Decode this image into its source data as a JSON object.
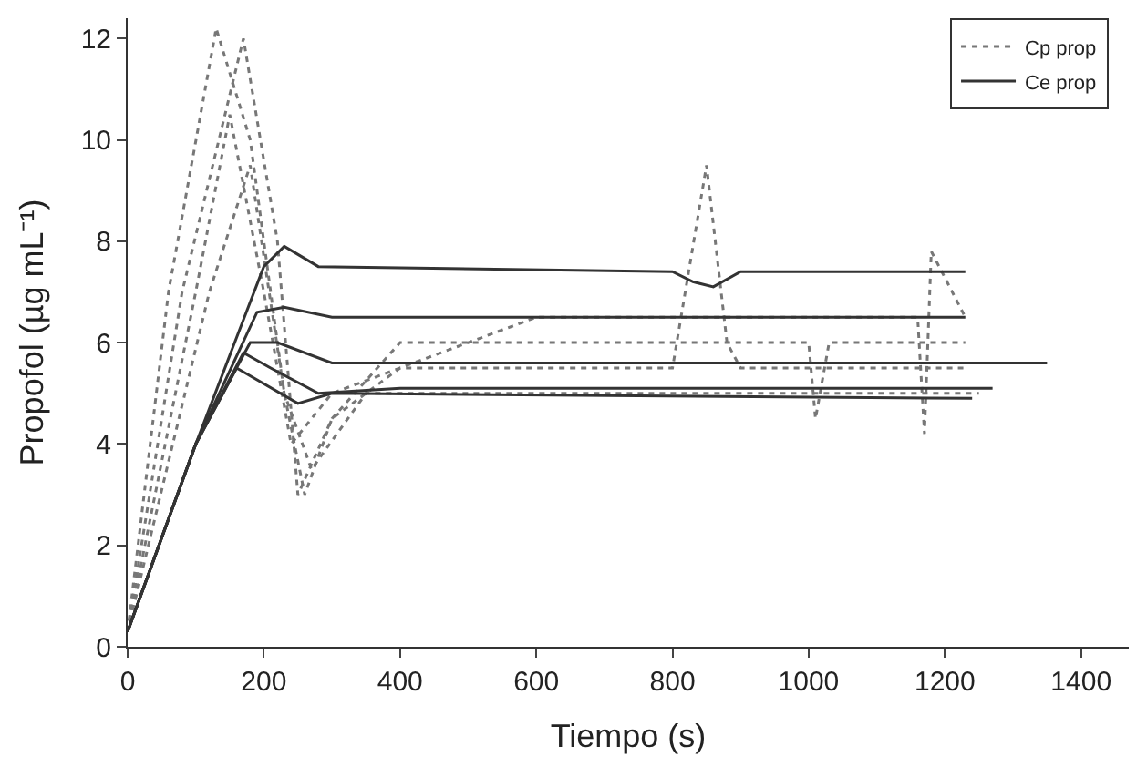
{
  "chart_data": {
    "type": "line",
    "xlabel": "Tiempo (s)",
    "ylabel": "Propofol (µg mL⁻¹)",
    "xlim": [
      0,
      1470
    ],
    "ylim": [
      0,
      12.4
    ],
    "xticks": [
      0,
      200,
      400,
      600,
      800,
      1000,
      1200,
      1400
    ],
    "yticks": [
      0,
      2,
      4,
      6,
      8,
      10,
      12
    ],
    "legend": "top right",
    "marker": "none",
    "series": [
      {
        "name": "Cp prop",
        "color": "#777777",
        "line_style": "dotted",
        "x": [
          0,
          60,
          130,
          180,
          230,
          260,
          300,
          400,
          800,
          850,
          880,
          900,
          1000,
          1230
        ],
        "values": [
          0.3,
          7,
          12.2,
          10,
          5,
          3,
          4.5,
          5.5,
          5.5,
          9.5,
          6,
          5.5,
          5.5,
          5.5
        ]
      },
      {
        "color": "#777777",
        "line_style": "dotted",
        "x": [
          0,
          80,
          170,
          220,
          250,
          300,
          400,
          1000,
          1010,
          1030,
          1230
        ],
        "values": [
          0.3,
          7,
          12,
          8,
          3,
          4.5,
          6,
          6,
          4.5,
          6,
          6
        ]
      },
      {
        "color": "#777777",
        "line_style": "dotted",
        "x": [
          0,
          100,
          150,
          200,
          240,
          300,
          600,
          1160,
          1170,
          1180,
          1230
        ],
        "values": [
          0.3,
          7,
          10.5,
          7,
          4,
          5,
          6.5,
          6.5,
          4.2,
          7.8,
          6.5
        ]
      },
      {
        "color": "#777777",
        "line_style": "dotted",
        "x": [
          0,
          120,
          180,
          230,
          270,
          350,
          1250
        ],
        "values": [
          0.3,
          7,
          9.5,
          5,
          3.5,
          5,
          5
        ]
      },
      {
        "name": "Ce prop",
        "color": "#333333",
        "line_style": "solid",
        "x": [
          0,
          100,
          200,
          230,
          280,
          800,
          830,
          860,
          900,
          1230
        ],
        "values": [
          0.3,
          4,
          7.5,
          7.9,
          7.5,
          7.4,
          7.2,
          7.1,
          7.4,
          7.4
        ]
      },
      {
        "color": "#333333",
        "line_style": "solid",
        "x": [
          0,
          100,
          190,
          230,
          300,
          1230
        ],
        "values": [
          0.3,
          4,
          6.6,
          6.7,
          6.5,
          6.5
        ]
      },
      {
        "color": "#333333",
        "line_style": "solid",
        "x": [
          0,
          100,
          180,
          220,
          300,
          1350
        ],
        "values": [
          0.3,
          4,
          6,
          6,
          5.6,
          5.6
        ]
      },
      {
        "color": "#333333",
        "line_style": "solid",
        "x": [
          0,
          100,
          170,
          210,
          280,
          400,
          1270
        ],
        "values": [
          0.3,
          4,
          5.8,
          5.5,
          5,
          5.1,
          5.1
        ]
      },
      {
        "color": "#333333",
        "line_style": "solid",
        "x": [
          0,
          100,
          160,
          250,
          300,
          1240
        ],
        "values": [
          0.3,
          4,
          5.5,
          4.8,
          5,
          4.9
        ]
      }
    ]
  }
}
